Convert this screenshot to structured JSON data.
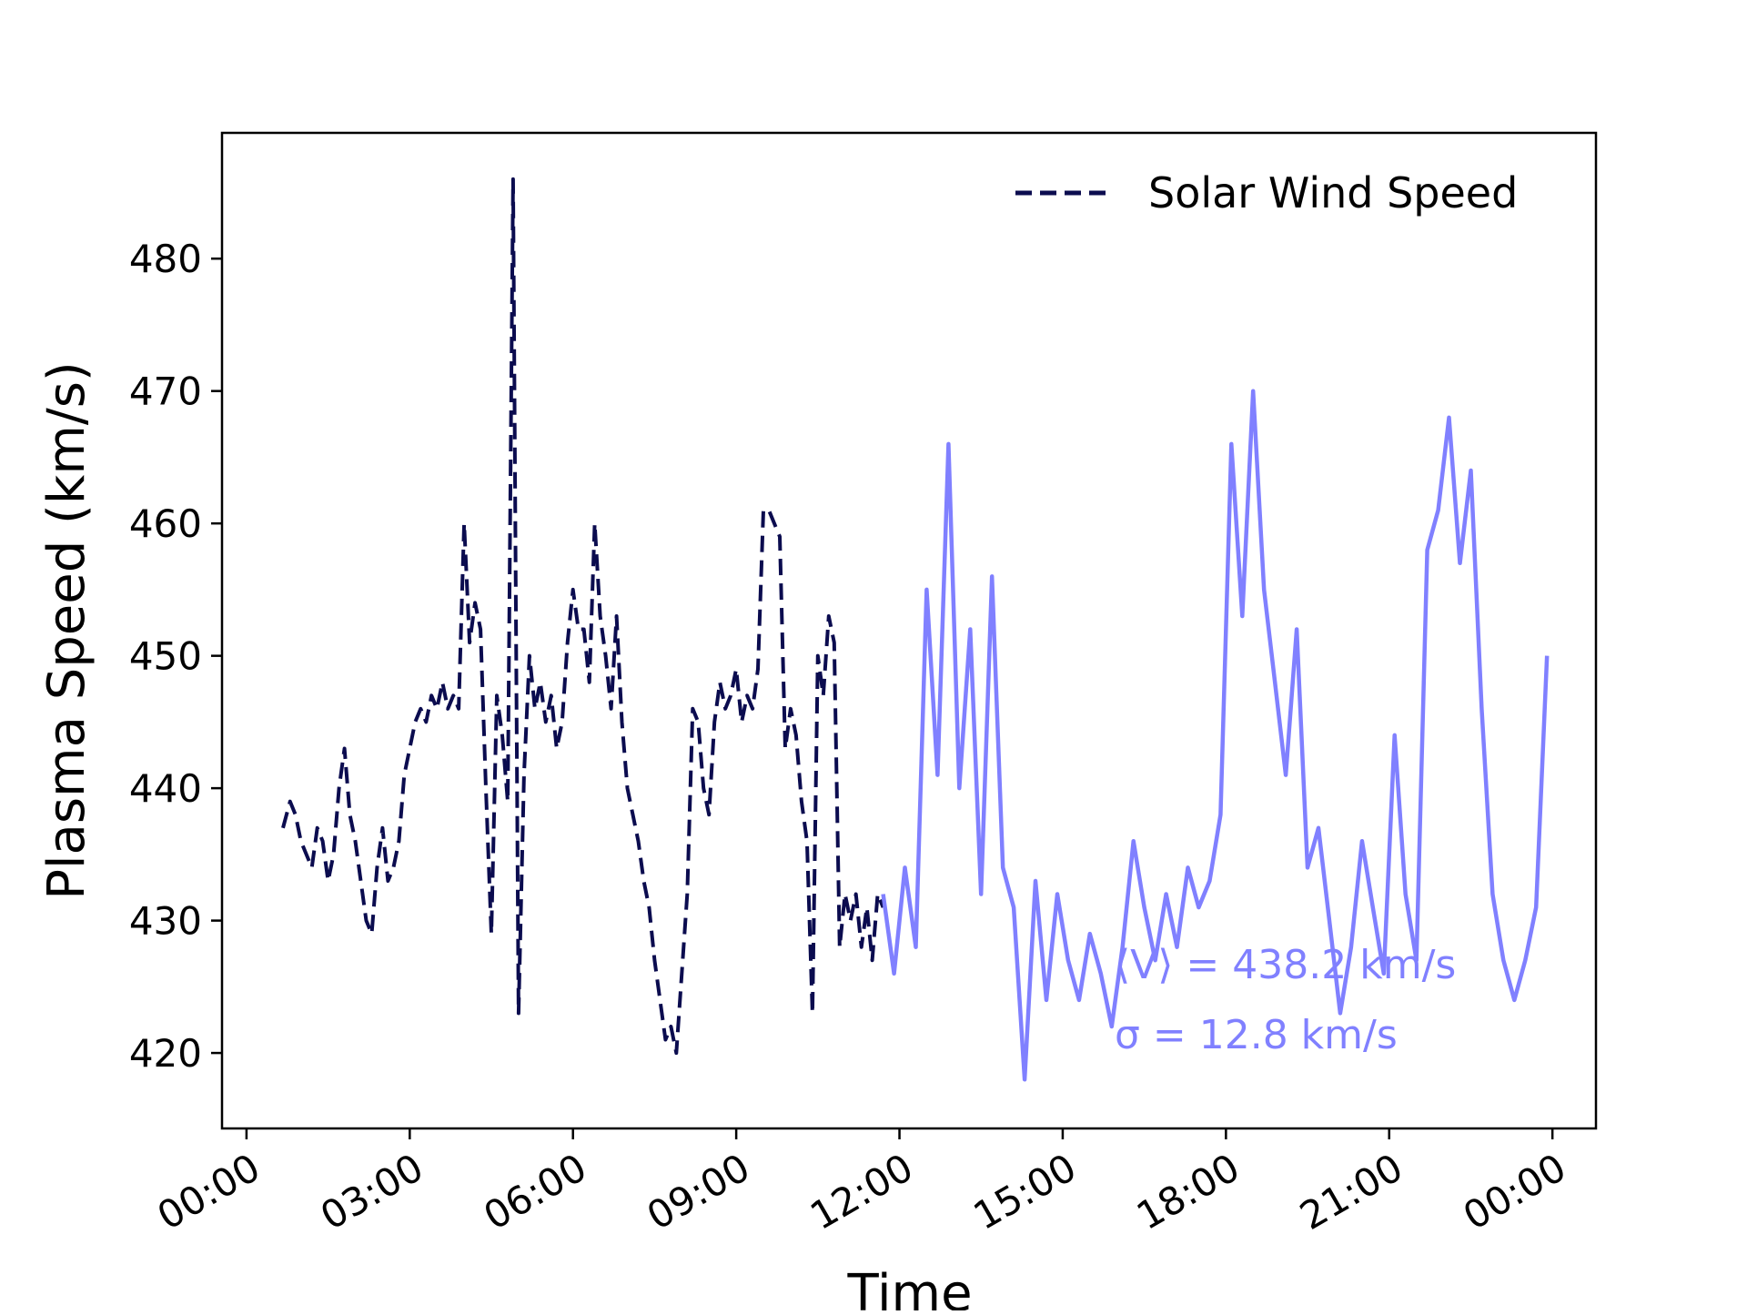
{
  "chart_data": {
    "type": "line",
    "xlabel": "Time",
    "ylabel": "Plasma Speed (km/s)",
    "x_ticks": [
      "00:00",
      "03:00",
      "06:00",
      "09:00",
      "12:00",
      "15:00",
      "18:00",
      "21:00",
      "00:00"
    ],
    "y_ticks": [
      420,
      430,
      440,
      450,
      460,
      470,
      480
    ],
    "xlim_hours": [
      -0.45,
      24.8
    ],
    "ylim": [
      414.3,
      489.5
    ],
    "grid": false,
    "legend_position": "top-right",
    "series": [
      {
        "name": "Solar Wind Speed",
        "style": "dashed",
        "color": "#0b0c4f",
        "x_hours": [
          0.67,
          0.8,
          0.9,
          1.0,
          1.1,
          1.2,
          1.3,
          1.4,
          1.5,
          1.6,
          1.7,
          1.8,
          1.9,
          2.0,
          2.1,
          2.2,
          2.3,
          2.4,
          2.5,
          2.6,
          2.7,
          2.8,
          2.9,
          3.0,
          3.1,
          3.2,
          3.3,
          3.4,
          3.5,
          3.6,
          3.7,
          3.8,
          3.9,
          4.0,
          4.1,
          4.2,
          4.3,
          4.4,
          4.5,
          4.6,
          4.7,
          4.8,
          4.9,
          5.0,
          5.1,
          5.2,
          5.3,
          5.4,
          5.5,
          5.6,
          5.7,
          5.8,
          5.9,
          6.0,
          6.1,
          6.2,
          6.3,
          6.4,
          6.5,
          6.6,
          6.7,
          6.8,
          6.9,
          7.0,
          7.1,
          7.2,
          7.3,
          7.4,
          7.5,
          7.6,
          7.7,
          7.8,
          7.9,
          8.0,
          8.1,
          8.2,
          8.3,
          8.4,
          8.5,
          8.6,
          8.7,
          8.8,
          8.9,
          9.0,
          9.1,
          9.2,
          9.3,
          9.4,
          9.5,
          9.6,
          9.7,
          9.8,
          9.9,
          10.0,
          10.1,
          10.2,
          10.3,
          10.4,
          10.5,
          10.6,
          10.7,
          10.8,
          10.9,
          11.0,
          11.1,
          11.2,
          11.3,
          11.4,
          11.5,
          11.6,
          11.7
        ],
        "y": [
          437,
          439,
          438,
          436,
          435,
          434,
          437,
          436,
          433,
          435,
          440,
          443,
          438,
          436,
          433,
          430,
          429,
          434,
          437,
          433,
          434,
          436,
          441,
          443,
          445,
          446,
          445,
          447,
          446,
          448,
          446,
          447,
          446,
          460,
          451,
          454,
          452,
          440,
          429,
          447,
          444,
          439,
          486,
          423,
          441,
          450,
          446,
          448,
          445,
          447,
          443,
          445,
          451,
          455,
          452,
          452,
          448,
          460,
          453,
          450,
          446,
          453,
          445,
          440,
          438,
          436,
          433,
          431,
          427,
          424,
          421,
          422,
          420,
          426,
          432,
          446,
          445,
          440,
          438,
          445,
          448,
          446,
          447,
          449,
          445,
          447,
          446,
          449,
          461,
          461,
          460,
          459,
          443,
          446,
          444,
          439,
          436,
          423,
          450,
          447,
          453,
          451,
          428,
          432,
          430,
          432,
          428,
          431,
          427,
          432,
          431
        ],
        "data_labels": []
      },
      {
        "name": "",
        "style": "solid",
        "color": "#8080ff",
        "x_hours": [
          11.7,
          11.9,
          12.1,
          12.3,
          12.5,
          12.7,
          12.9,
          13.1,
          13.3,
          13.5,
          13.7,
          13.9,
          14.1,
          14.3,
          14.5,
          14.7,
          14.9,
          15.1,
          15.3,
          15.5,
          15.7,
          15.9,
          16.1,
          16.3,
          16.5,
          16.7,
          16.9,
          17.1,
          17.3,
          17.5,
          17.7,
          17.9,
          18.1,
          18.3,
          18.5,
          18.7,
          18.9,
          19.1,
          19.3,
          19.5,
          19.7,
          19.9,
          20.1,
          20.3,
          20.5,
          20.7,
          20.9,
          21.1,
          21.3,
          21.5,
          21.7,
          21.9,
          22.1,
          22.3,
          22.5,
          22.7,
          22.9,
          23.1,
          23.3,
          23.5,
          23.7,
          23.9
        ],
        "y": [
          432,
          426,
          434,
          428,
          455,
          441,
          466,
          440,
          452,
          432,
          456,
          434,
          431,
          418,
          433,
          424,
          432,
          427,
          424,
          429,
          426,
          422,
          428,
          436,
          431,
          427,
          432,
          428,
          434,
          431,
          433,
          438,
          466,
          453,
          470,
          455,
          448,
          441,
          452,
          434,
          437,
          430,
          423,
          428,
          436,
          431,
          426,
          444,
          432,
          427,
          458,
          461,
          468,
          457,
          464,
          446,
          432,
          427,
          424,
          427,
          431,
          450
        ],
        "data_labels": []
      }
    ],
    "annotations": [
      "⟨V⟩ = 438.2 km/s",
      "σ = 12.8 km/s"
    ]
  },
  "colors": {
    "dark_series": "#0b0c4f",
    "light_series": "#8080ff",
    "axes": "#000000"
  }
}
